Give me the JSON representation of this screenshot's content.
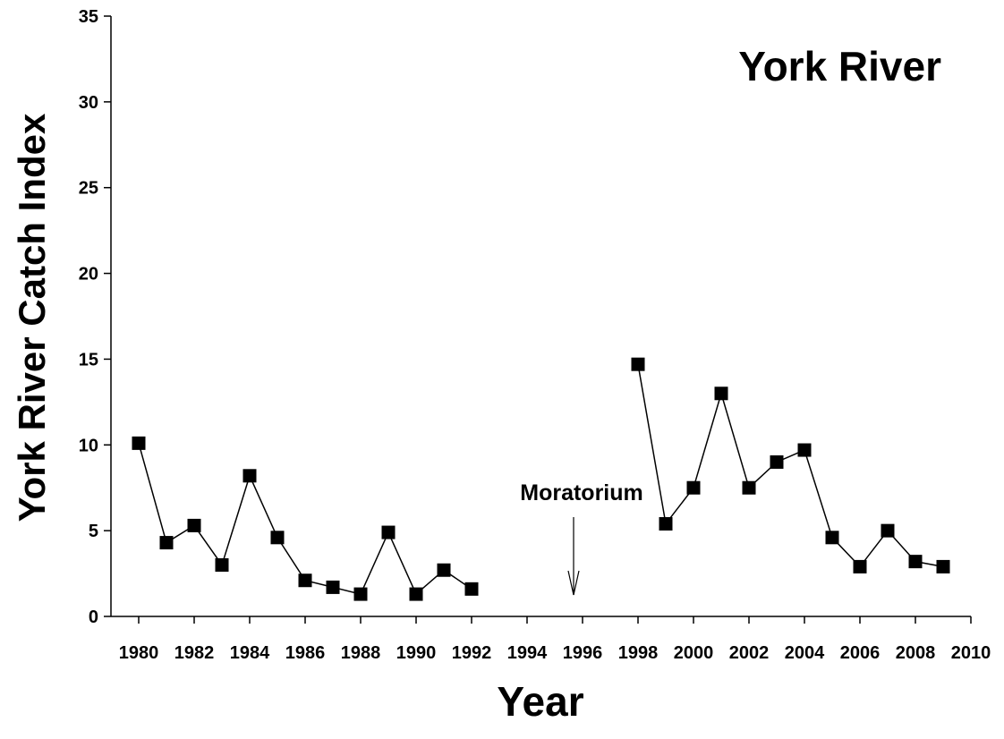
{
  "chart_data": {
    "type": "line",
    "title": "York River",
    "x_label": "Year",
    "y_label": "York River Catch Index",
    "annotation": "Moratorium",
    "x": [
      1980,
      1981,
      1982,
      1983,
      1984,
      1985,
      1986,
      1987,
      1988,
      1989,
      1990,
      1991,
      1992,
      1993,
      1994,
      1995,
      1996,
      1997,
      1998,
      1999,
      2000,
      2001,
      2002,
      2003,
      2004,
      2005,
      2006,
      2007,
      2008,
      2009
    ],
    "series": [
      {
        "name": "York River",
        "color": "#000000",
        "values": [
          10.1,
          4.3,
          5.3,
          3.0,
          8.2,
          4.6,
          2.1,
          1.7,
          1.3,
          4.9,
          1.3,
          2.7,
          1.6,
          null,
          null,
          null,
          null,
          null,
          14.7,
          5.4,
          7.5,
          13.0,
          7.5,
          9.0,
          9.7,
          4.6,
          2.9,
          5.0,
          3.2,
          2.9
        ]
      }
    ],
    "xlim": [
      1979,
      2010
    ],
    "xticks": [
      1980,
      1982,
      1984,
      1986,
      1988,
      1990,
      1992,
      1994,
      1996,
      1998,
      2000,
      2002,
      2004,
      2006,
      2008,
      2010
    ],
    "ylim": [
      0,
      35
    ],
    "yticks": [
      0,
      5,
      10,
      15,
      20,
      25,
      30,
      35
    ]
  }
}
